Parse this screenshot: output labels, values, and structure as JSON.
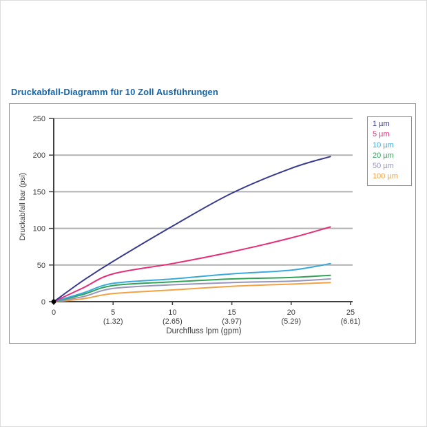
{
  "page": {
    "title": "Druckabfall-Diagramm für 10 Zoll Ausführungen"
  },
  "colors": {
    "title_blue": "#1466ae",
    "axis": "#3f3f3f",
    "grid": "#b0b0b0",
    "box_border": "#919191",
    "tick_text": "#3c3c3c",
    "origin_marker": "#000000"
  },
  "chart_data": {
    "type": "line",
    "title": "Druckabfall-Diagramm für 10 Zoll Ausführungen",
    "xlabel": "Durchfluss lpm (gpm)",
    "ylabel": "Druckabfall bar (psi)",
    "xlim": [
      0,
      25
    ],
    "ylim": [
      0,
      250
    ],
    "grid": "horizontal gridlines at every 50, no vertical gridlines",
    "legend_position": "outside top-right, boxed, colored text only",
    "yticks": [
      0,
      50,
      100,
      150,
      200,
      250
    ],
    "xticks": [
      {
        "lpm": "0",
        "gpm": ""
      },
      {
        "lpm": "5",
        "gpm": "(1.32)"
      },
      {
        "lpm": "10",
        "gpm": "(2.65)"
      },
      {
        "lpm": "15",
        "gpm": "(3.97)"
      },
      {
        "lpm": "20",
        "gpm": "(5.29)"
      },
      {
        "lpm": "25",
        "gpm": "(6.61)"
      }
    ],
    "x": [
      0,
      2.5,
      5,
      10,
      15,
      20,
      23.3
    ],
    "series": [
      {
        "name": "1 µm",
        "color": "#373a8f",
        "values": [
          0,
          29,
          55,
          103,
          148,
          182,
          198
        ]
      },
      {
        "name": "5 µm",
        "color": "#e62e78",
        "values": [
          0,
          19,
          38,
          52,
          68,
          87,
          102
        ]
      },
      {
        "name": "10 µm",
        "color": "#39a9dc",
        "values": [
          0,
          12,
          25,
          31,
          38,
          43,
          52
        ]
      },
      {
        "name": "20 µm",
        "color": "#2fa356",
        "values": [
          0,
          10,
          22,
          27,
          31,
          33,
          36
        ]
      },
      {
        "name": "50 µm",
        "color": "#9695bb",
        "values": [
          0,
          7,
          18,
          23,
          26,
          28,
          31
        ]
      },
      {
        "name": "100 µm",
        "color": "#f2a243",
        "values": [
          0,
          4,
          11,
          16,
          21,
          24,
          26
        ]
      }
    ],
    "origin_marker": true
  }
}
